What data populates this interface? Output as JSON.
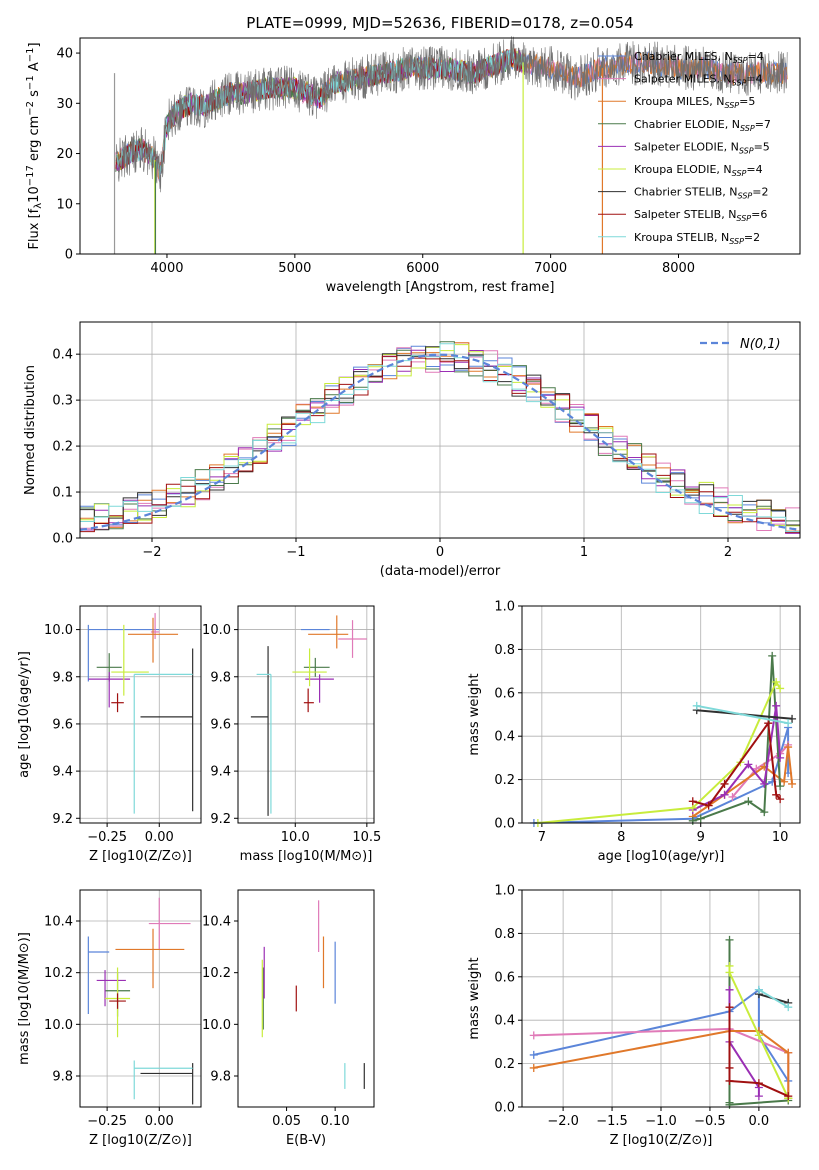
{
  "figure": {
    "title": "PLATE=0999, MJD=52636, FIBERID=0178, z=0.054"
  },
  "colors": {
    "Chabrier MILES": "#5b85d9",
    "Salpeter MILES": "#e07ab8",
    "Kroupa MILES": "#e0782a",
    "Chabrier ELODIE": "#4a7a4a",
    "Salpeter ELODIE": "#9a2fb4",
    "Kroupa ELODIE": "#c8ec3c",
    "Chabrier STELIB": "#303030",
    "Salpeter STELIB": "#a01010",
    "Kroupa STELIB": "#7fd9d9"
  },
  "chart_data": [
    {
      "id": "spectrum",
      "type": "line",
      "title": "PLATE=0999, MJD=52636, FIBERID=0178, z=0.054",
      "xlabel": "wavelength [Angstrom, rest frame]",
      "ylabel_main": "Flux [f",
      "ylabel_lambda": "λ",
      "ylabel_rest": "10",
      "ylabel_exp1": "−17",
      "ylabel_unit": " erg cm",
      "ylabel_exp2": "−2",
      "ylabel_unit2": " s",
      "ylabel_exp3": "−1",
      "ylabel_unit3": " A",
      "ylabel_exp4": "−1",
      "ylabel_end": "]",
      "xlim": [
        3320,
        8950
      ],
      "ylim": [
        0,
        43
      ],
      "xticks": [
        4000,
        5000,
        6000,
        7000,
        8000
      ],
      "yticks": [
        0,
        10,
        20,
        30,
        40
      ],
      "legend_position": "top-right",
      "legend": [
        {
          "model": "Chabrier MILES",
          "nssp": "4"
        },
        {
          "model": "Salpeter MILES",
          "nssp": "4"
        },
        {
          "model": "Kroupa MILES",
          "nssp": "5"
        },
        {
          "model": "Chabrier ELODIE",
          "nssp": "7"
        },
        {
          "model": "Salpeter ELODIE",
          "nssp": "5"
        },
        {
          "model": "Kroupa ELODIE",
          "nssp": "4"
        },
        {
          "model": "Chabrier STELIB",
          "nssp": "2"
        },
        {
          "model": "Salpeter STELIB",
          "nssp": "6"
        },
        {
          "model": "Kroupa STELIB",
          "nssp": "2"
        }
      ],
      "continuum": [
        [
          3600,
          18
        ],
        [
          3700,
          20
        ],
        [
          3800,
          21
        ],
        [
          3900,
          19
        ],
        [
          3950,
          16
        ],
        [
          4000,
          26
        ],
        [
          4100,
          29
        ],
        [
          4200,
          30
        ],
        [
          4300,
          29.5
        ],
        [
          4400,
          31
        ],
        [
          4500,
          32
        ],
        [
          4600,
          32
        ],
        [
          4800,
          33
        ],
        [
          5000,
          33
        ],
        [
          5100,
          32
        ],
        [
          5200,
          31
        ],
        [
          5300,
          34
        ],
        [
          5500,
          35
        ],
        [
          5700,
          36
        ],
        [
          5900,
          37
        ],
        [
          6000,
          37
        ],
        [
          6200,
          37
        ],
        [
          6400,
          36
        ],
        [
          6600,
          38
        ],
        [
          6700,
          39
        ],
        [
          6800,
          38
        ],
        [
          7000,
          37
        ],
        [
          7200,
          35
        ],
        [
          7400,
          37
        ],
        [
          7600,
          38
        ],
        [
          7800,
          38
        ],
        [
          8000,
          37
        ],
        [
          8200,
          37
        ],
        [
          8400,
          36
        ],
        [
          8600,
          36
        ],
        [
          8800,
          36
        ]
      ]
    },
    {
      "id": "residuals",
      "type": "histogram",
      "xlabel": "(data-model)/error",
      "ylabel": "Normed distribution",
      "xlim": [
        -2.5,
        2.5
      ],
      "ylim": [
        0,
        0.47
      ],
      "xticks": [
        -2,
        -1,
        0,
        1,
        2
      ],
      "yticks": [
        0.0,
        0.1,
        0.2,
        0.3,
        0.4
      ],
      "legend_position": "top-right",
      "legend_label": "N(0,1)",
      "reference_curve": "standard normal pdf, dashed"
    },
    {
      "id": "age-vs-Z",
      "type": "scatter",
      "xlabel": "Z [log10(Z/Z⊙)]",
      "ylabel": "age  [log10(age/yr)]",
      "xlim": [
        -0.38,
        0.2
      ],
      "ylim": [
        9.18,
        10.1
      ],
      "xticks": [
        -0.25,
        0.0
      ],
      "yticks": [
        9.2,
        9.4,
        9.6,
        9.8,
        10.0
      ],
      "points": [
        {
          "model": "Chabrier MILES",
          "x": -0.34,
          "xerr": [
            0.0,
            0.34
          ],
          "y": 10.0,
          "yerr": [
            0.22,
            0.02
          ]
        },
        {
          "model": "Salpeter MILES",
          "x": -0.02,
          "xerr": [
            0.02,
            0.02
          ],
          "y": 9.99,
          "yerr": [
            0.03,
            0.08
          ]
        },
        {
          "model": "Kroupa MILES",
          "x": -0.03,
          "xerr": [
            0.12,
            0.12
          ],
          "y": 9.98,
          "yerr": [
            0.12,
            0.07
          ]
        },
        {
          "model": "Chabrier ELODIE",
          "x": -0.24,
          "xerr": [
            0.06,
            0.06
          ],
          "y": 9.84,
          "yerr": [
            0.06,
            0.06
          ]
        },
        {
          "model": "Salpeter ELODIE",
          "x": -0.24,
          "xerr": [
            0.1,
            0.1
          ],
          "y": 9.79,
          "yerr": [
            0.12,
            0.03
          ]
        },
        {
          "model": "Kroupa ELODIE",
          "x": -0.17,
          "xerr": [
            0.06,
            0.12
          ],
          "y": 9.82,
          "yerr": [
            0.1,
            0.2
          ]
        },
        {
          "model": "Chabrier STELIB",
          "x": 0.16,
          "xerr": [
            0.25,
            0.0
          ],
          "y": 9.63,
          "yerr": [
            0.4,
            0.29
          ]
        },
        {
          "model": "Salpeter STELIB",
          "x": -0.2,
          "xerr": [
            0.03,
            0.03
          ],
          "y": 9.69,
          "yerr": [
            0.04,
            0.04
          ]
        },
        {
          "model": "Kroupa STELIB",
          "x": -0.12,
          "xerr": [
            0.0,
            0.28
          ],
          "y": 9.81,
          "yerr": [
            0.59,
            0.0
          ]
        }
      ]
    },
    {
      "id": "age-vs-mass",
      "type": "scatter",
      "xlabel": "mass [log10(M/M⊙)]",
      "xlim": [
        9.6,
        10.55
      ],
      "ylim": [
        9.18,
        10.1
      ],
      "xticks": [
        10.0,
        10.5
      ],
      "yticks": [
        9.2,
        9.4,
        9.6,
        9.8,
        10.0
      ],
      "points": [
        {
          "model": "Chabrier MILES",
          "x": 10.24,
          "xerr": [
            0.2,
            0.0
          ],
          "y": 10.0,
          "yerr": [
            0.0,
            0.0
          ]
        },
        {
          "model": "Salpeter MILES",
          "x": 10.4,
          "xerr": [
            0.1,
            0.1
          ],
          "y": 9.96,
          "yerr": [
            0.08,
            0.08
          ]
        },
        {
          "model": "Kroupa MILES",
          "x": 10.29,
          "xerr": [
            0.2,
            0.08
          ],
          "y": 9.98,
          "yerr": [
            0.06,
            0.08
          ]
        },
        {
          "model": "Chabrier ELODIE",
          "x": 10.14,
          "xerr": [
            0.08,
            0.1
          ],
          "y": 9.84,
          "yerr": [
            0.04,
            0.04
          ]
        },
        {
          "model": "Salpeter ELODIE",
          "x": 10.17,
          "xerr": [
            0.1,
            0.1
          ],
          "y": 9.79,
          "yerr": [
            0.1,
            0.02
          ]
        },
        {
          "model": "Kroupa ELODIE",
          "x": 10.1,
          "xerr": [
            0.12,
            0.12
          ],
          "y": 9.82,
          "yerr": [
            0.06,
            0.1
          ]
        },
        {
          "model": "Chabrier STELIB",
          "x": 9.81,
          "xerr": [
            0.12,
            0.0
          ],
          "y": 9.63,
          "yerr": [
            0.42,
            0.3
          ]
        },
        {
          "model": "Salpeter STELIB",
          "x": 10.09,
          "xerr": [
            0.03,
            0.04
          ],
          "y": 9.69,
          "yerr": [
            0.04,
            0.06
          ]
        },
        {
          "model": "Kroupa STELIB",
          "x": 9.83,
          "xerr": [
            0.1,
            0.0
          ],
          "y": 9.81,
          "yerr": [
            0.59,
            0.0
          ]
        }
      ]
    },
    {
      "id": "weight-vs-age",
      "type": "line",
      "xlabel": "age  [log10(age/yr)]",
      "ylabel": "mass weight",
      "xlim": [
        6.75,
        10.25
      ],
      "ylim": [
        0,
        1.0
      ],
      "xticks": [
        7,
        8,
        9,
        10
      ],
      "yticks": [
        0.0,
        0.2,
        0.4,
        0.6,
        0.8,
        1.0
      ],
      "series": [
        {
          "model": "Chabrier MILES",
          "x": [
            6.9,
            8.9,
            9.9,
            10.1,
            10.1
          ],
          "y": [
            0.0,
            0.02,
            0.19,
            0.44,
            0.23
          ]
        },
        {
          "model": "Salpeter MILES",
          "x": [
            9.4,
            9.7,
            10.0,
            10.1
          ],
          "y": [
            0.12,
            0.25,
            0.32,
            0.36
          ]
        },
        {
          "model": "Kroupa MILES",
          "x": [
            8.9,
            9.3,
            9.8,
            10.05,
            10.1,
            10.15
          ],
          "y": [
            0.03,
            0.13,
            0.26,
            0.19,
            0.35,
            0.18
          ]
        },
        {
          "model": "Chabrier ELODIE",
          "x": [
            8.9,
            9.0,
            9.6,
            9.8,
            9.9,
            10.0
          ],
          "y": [
            0.01,
            0.02,
            0.1,
            0.05,
            0.77,
            0.17
          ]
        },
        {
          "model": "Salpeter ELODIE",
          "x": [
            8.9,
            9.3,
            9.6,
            9.8,
            9.95,
            10.0
          ],
          "y": [
            0.06,
            0.13,
            0.27,
            0.18,
            0.54,
            0.3
          ]
        },
        {
          "model": "Kroupa ELODIE",
          "x": [
            6.95,
            8.9,
            9.5,
            9.95,
            10.0
          ],
          "y": [
            0.0,
            0.07,
            0.28,
            0.65,
            0.62
          ]
        },
        {
          "model": "Chabrier STELIB",
          "x": [
            8.95,
            10.15
          ],
          "y": [
            0.52,
            0.48
          ]
        },
        {
          "model": "Salpeter STELIB",
          "x": [
            8.9,
            9.1,
            9.3,
            9.85,
            9.95,
            10.0
          ],
          "y": [
            0.1,
            0.08,
            0.18,
            0.46,
            0.13,
            0.11
          ]
        },
        {
          "model": "Kroupa STELIB",
          "x": [
            8.95,
            10.1
          ],
          "y": [
            0.54,
            0.46
          ]
        }
      ]
    },
    {
      "id": "mass-vs-Z",
      "type": "scatter",
      "xlabel": "Z [log10(Z/Z⊙)]",
      "ylabel": "mass [log10(M/M⊙)]",
      "xlim": [
        -0.38,
        0.2
      ],
      "ylim": [
        9.68,
        10.52
      ],
      "xticks": [
        -0.25,
        0.0
      ],
      "yticks": [
        9.8,
        10.0,
        10.2,
        10.4
      ],
      "points": [
        {
          "model": "Chabrier MILES",
          "x": -0.34,
          "xerr": [
            0.0,
            0.1
          ],
          "y": 10.28,
          "yerr": [
            0.24,
            0.06
          ]
        },
        {
          "model": "Salpeter MILES",
          "x": 0.0,
          "xerr": [
            0.05,
            0.15
          ],
          "y": 10.39,
          "yerr": [
            0.1,
            0.1
          ]
        },
        {
          "model": "Kroupa MILES",
          "x": -0.03,
          "xerr": [
            0.18,
            0.15
          ],
          "y": 10.29,
          "yerr": [
            0.15,
            0.08
          ]
        },
        {
          "model": "Chabrier ELODIE",
          "x": -0.2,
          "xerr": [
            0.06,
            0.06
          ],
          "y": 10.13,
          "yerr": [
            0.1,
            0.07
          ]
        },
        {
          "model": "Salpeter ELODIE",
          "x": -0.26,
          "xerr": [
            0.04,
            0.1
          ],
          "y": 10.17,
          "yerr": [
            0.1,
            0.04
          ]
        },
        {
          "model": "Kroupa ELODIE",
          "x": -0.2,
          "xerr": [
            0.06,
            0.06
          ],
          "y": 10.1,
          "yerr": [
            0.15,
            0.12
          ]
        },
        {
          "model": "Chabrier STELIB",
          "x": 0.16,
          "xerr": [
            0.25,
            0.0
          ],
          "y": 9.81,
          "yerr": [
            0.12,
            0.04
          ]
        },
        {
          "model": "Salpeter STELIB",
          "x": -0.2,
          "xerr": [
            0.04,
            0.04
          ],
          "y": 10.09,
          "yerr": [
            0.03,
            0.03
          ]
        },
        {
          "model": "Kroupa STELIB",
          "x": -0.12,
          "xerr": [
            0.0,
            0.28
          ],
          "y": 9.83,
          "yerr": [
            0.12,
            0.03
          ]
        }
      ]
    },
    {
      "id": "mass-vs-EBV",
      "type": "scatter",
      "xlabel": "E(B-V)",
      "xlim": [
        0.0,
        0.14
      ],
      "ylim": [
        9.68,
        10.52
      ],
      "xticks": [
        0.05,
        0.1
      ],
      "yticks": [
        9.8,
        10.0,
        10.2,
        10.4
      ],
      "points": [
        {
          "model": "Chabrier MILES",
          "x": 0.1,
          "y": 10.2,
          "yerr": [
            0.12,
            0.12
          ]
        },
        {
          "model": "Salpeter MILES",
          "x": 0.083,
          "y": 10.38,
          "yerr": [
            0.1,
            0.1
          ]
        },
        {
          "model": "Kroupa MILES",
          "x": 0.088,
          "y": 10.24,
          "yerr": [
            0.1,
            0.1
          ]
        },
        {
          "model": "Chabrier ELODIE",
          "x": 0.026,
          "y": 10.1,
          "yerr": [
            0.12,
            0.12
          ]
        },
        {
          "model": "Salpeter ELODIE",
          "x": 0.027,
          "y": 10.2,
          "yerr": [
            0.1,
            0.1
          ]
        },
        {
          "model": "Kroupa ELODIE",
          "x": 0.025,
          "y": 10.1,
          "yerr": [
            0.15,
            0.15
          ]
        },
        {
          "model": "Chabrier STELIB",
          "x": 0.13,
          "y": 9.8,
          "yerr": [
            0.05,
            0.05
          ]
        },
        {
          "model": "Salpeter STELIB",
          "x": 0.06,
          "y": 10.1,
          "yerr": [
            0.05,
            0.05
          ]
        },
        {
          "model": "Kroupa STELIB",
          "x": 0.11,
          "y": 9.8,
          "yerr": [
            0.05,
            0.05
          ]
        }
      ]
    },
    {
      "id": "weight-vs-Z",
      "type": "line",
      "xlabel": "Z [log10(Z/Z⊙)]",
      "ylabel": "mass weight",
      "xlim": [
        -2.42,
        0.42
      ],
      "ylim": [
        0,
        1.0
      ],
      "xticks": [
        -2.0,
        -1.5,
        -1.0,
        -0.5,
        0.0
      ],
      "yticks": [
        0.0,
        0.2,
        0.4,
        0.6,
        0.8,
        1.0
      ],
      "series": [
        {
          "model": "Chabrier MILES",
          "x": [
            -2.3,
            -0.3,
            0.0,
            0.0,
            0.3
          ],
          "y": [
            0.24,
            0.44,
            0.54,
            0.33,
            0.12
          ]
        },
        {
          "model": "Salpeter MILES",
          "x": [
            -2.3,
            -0.3,
            0.3,
            0.3
          ],
          "y": [
            0.33,
            0.36,
            0.25,
            0.05
          ]
        },
        {
          "model": "Kroupa MILES",
          "x": [
            -2.3,
            -0.3,
            0.0,
            0.3,
            0.3
          ],
          "y": [
            0.18,
            0.35,
            0.35,
            0.25,
            0.04
          ]
        },
        {
          "model": "Chabrier ELODIE",
          "x": [
            -0.3,
            -0.3,
            -0.3,
            0.3
          ],
          "y": [
            0.77,
            0.02,
            0.01,
            0.03
          ]
        },
        {
          "model": "Salpeter ELODIE",
          "x": [
            -0.3,
            -0.3,
            0.0,
            0.0
          ],
          "y": [
            0.54,
            0.3,
            0.09,
            0.05
          ]
        },
        {
          "model": "Kroupa ELODIE",
          "x": [
            -0.3,
            -0.3,
            0.0,
            0.3
          ],
          "y": [
            0.65,
            0.62,
            0.33,
            0.04
          ]
        },
        {
          "model": "Chabrier STELIB",
          "x": [
            0.0,
            0.3
          ],
          "y": [
            0.52,
            0.48
          ]
        },
        {
          "model": "Salpeter STELIB",
          "x": [
            -0.3,
            -0.3,
            -0.3,
            0.0,
            0.3
          ],
          "y": [
            0.46,
            0.18,
            0.12,
            0.11,
            0.05
          ]
        },
        {
          "model": "Kroupa STELIB",
          "x": [
            0.0,
            0.3
          ],
          "y": [
            0.54,
            0.46
          ]
        }
      ]
    }
  ]
}
